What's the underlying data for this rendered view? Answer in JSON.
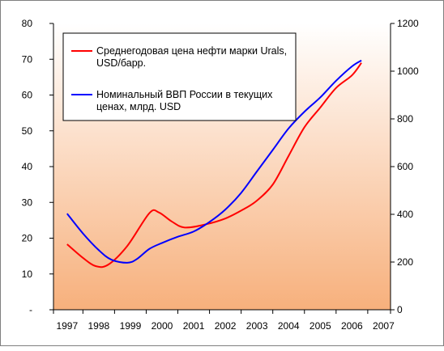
{
  "chart_data": {
    "type": "line",
    "categories": [
      "1997",
      "1998",
      "1999",
      "2000",
      "2001",
      "2002",
      "2003",
      "2004",
      "2005",
      "2006",
      "2007"
    ],
    "left_axis": {
      "ylim": [
        0,
        80
      ],
      "ticks": [
        {
          "value": 0,
          "label": "-"
        },
        {
          "value": 10,
          "label": "10"
        },
        {
          "value": 20,
          "label": "20"
        },
        {
          "value": 30,
          "label": "30"
        },
        {
          "value": 40,
          "label": "40"
        },
        {
          "value": 50,
          "label": "50"
        },
        {
          "value": 60,
          "label": "60"
        },
        {
          "value": 70,
          "label": "70"
        },
        {
          "value": 80,
          "label": "80"
        }
      ]
    },
    "right_axis": {
      "ylim": [
        0,
        1200
      ],
      "ticks": [
        {
          "value": 0,
          "label": "0"
        },
        {
          "value": 200,
          "label": "200"
        },
        {
          "value": 400,
          "label": "400"
        },
        {
          "value": 600,
          "label": "600"
        },
        {
          "value": 800,
          "label": "800"
        },
        {
          "value": 1000,
          "label": "1000"
        },
        {
          "value": 1200,
          "label": "1200"
        }
      ]
    },
    "series": [
      {
        "name": "Среднегодовая цена нефти марки Urals, USD/барр.",
        "axis": "left",
        "color": "#ff0000",
        "points": [
          {
            "x": 1997.0,
            "y": 18.3
          },
          {
            "x": 1997.5,
            "y": 14.5
          },
          {
            "x": 1997.9,
            "y": 12.2
          },
          {
            "x": 1998.3,
            "y": 12.6
          },
          {
            "x": 1998.9,
            "y": 17.8
          },
          {
            "x": 1999.6,
            "y": 27.0
          },
          {
            "x": 1999.9,
            "y": 27.2
          },
          {
            "x": 2000.3,
            "y": 24.7
          },
          {
            "x": 2000.7,
            "y": 23.0
          },
          {
            "x": 2001.3,
            "y": 23.7
          },
          {
            "x": 2002.0,
            "y": 25.5
          },
          {
            "x": 2002.6,
            "y": 28.2
          },
          {
            "x": 2003.0,
            "y": 30.5
          },
          {
            "x": 2003.5,
            "y": 35.0
          },
          {
            "x": 2004.0,
            "y": 43.0
          },
          {
            "x": 2004.5,
            "y": 51.0
          },
          {
            "x": 2005.0,
            "y": 56.5
          },
          {
            "x": 2005.5,
            "y": 62.0
          },
          {
            "x": 2006.0,
            "y": 65.5
          },
          {
            "x": 2006.3,
            "y": 69.0
          }
        ]
      },
      {
        "name": "Номинальный ВВП России в текущих ценах, млрд. USD",
        "axis": "right",
        "color": "#0000ff",
        "points": [
          {
            "x": 1997.0,
            "y": 403
          },
          {
            "x": 1997.5,
            "y": 320
          },
          {
            "x": 1998.0,
            "y": 250
          },
          {
            "x": 1998.4,
            "y": 210
          },
          {
            "x": 1998.9,
            "y": 197
          },
          {
            "x": 1999.2,
            "y": 212
          },
          {
            "x": 1999.6,
            "y": 255
          },
          {
            "x": 2000.0,
            "y": 280
          },
          {
            "x": 2000.5,
            "y": 306
          },
          {
            "x": 2001.0,
            "y": 328
          },
          {
            "x": 2001.5,
            "y": 368
          },
          {
            "x": 2002.0,
            "y": 420
          },
          {
            "x": 2002.5,
            "y": 490
          },
          {
            "x": 2003.0,
            "y": 580
          },
          {
            "x": 2003.5,
            "y": 670
          },
          {
            "x": 2004.0,
            "y": 760
          },
          {
            "x": 2004.5,
            "y": 830
          },
          {
            "x": 2005.0,
            "y": 890
          },
          {
            "x": 2005.5,
            "y": 960
          },
          {
            "x": 2006.0,
            "y": 1020
          },
          {
            "x": 2006.3,
            "y": 1045
          }
        ]
      }
    ],
    "grid": false,
    "legend_position": "top-left",
    "title": "",
    "xlabel": "",
    "ylabel": "",
    "plot_background": {
      "top": "#ffffff",
      "bottom": "#f7b07c"
    }
  }
}
